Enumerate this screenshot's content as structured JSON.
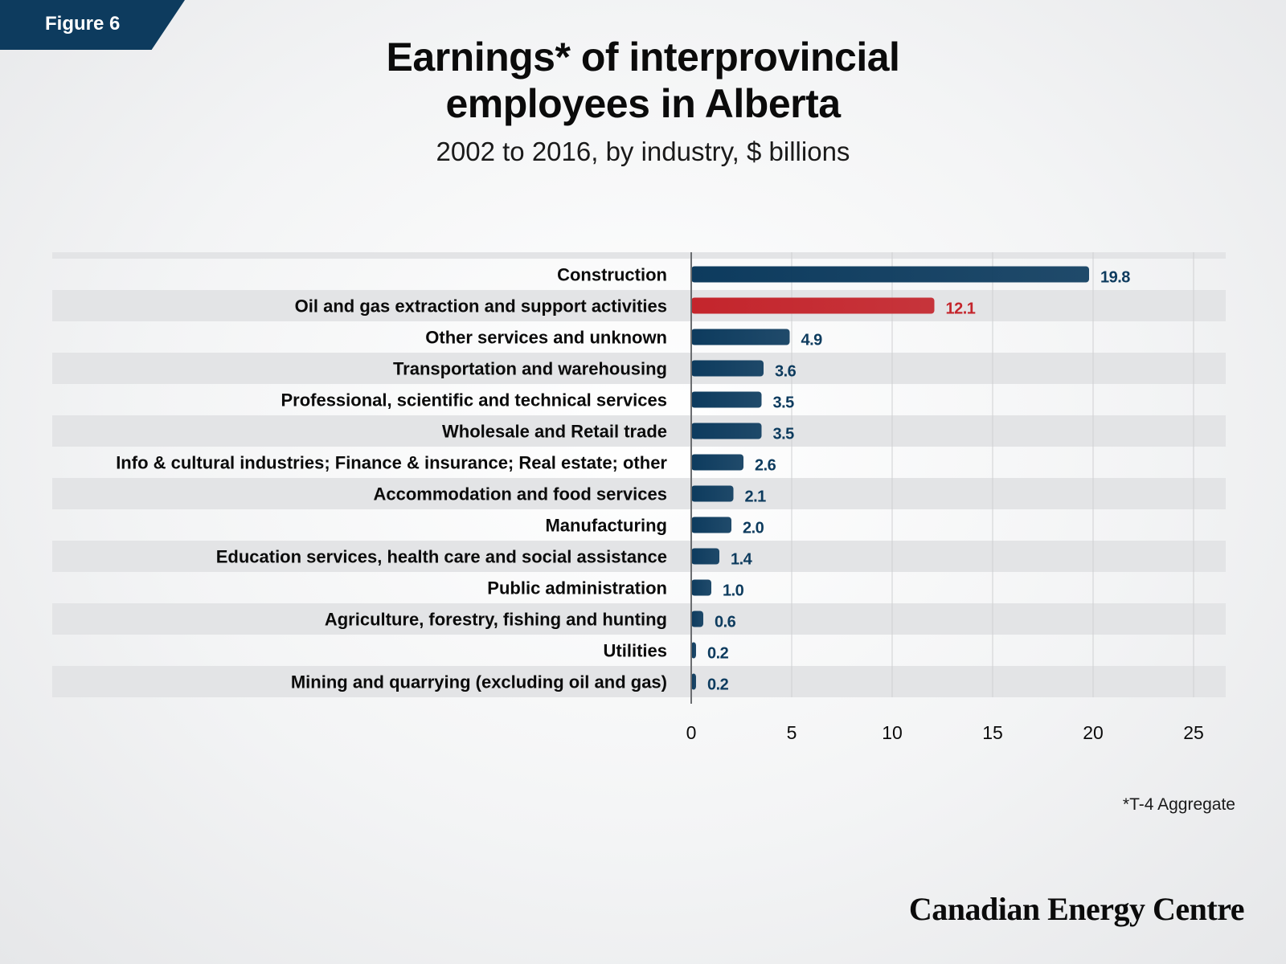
{
  "figure_label": "Figure 6",
  "title_lines": [
    "Earnings* of interprovincial",
    "employees in Alberta"
  ],
  "subtitle": "2002 to 2016, by industry, $ billions",
  "footnote": "*T-4 Aggregate",
  "brand": "Canadian Energy Centre",
  "colors": {
    "primary_bar": "#0d3b5e",
    "highlight_bar": "#c4252c",
    "stripe": "#e3e4e6",
    "figure_tag": "#0d3b5e"
  },
  "chart_data": {
    "type": "bar",
    "orientation": "horizontal",
    "title": "Earnings* of interprovincial employees in Alberta",
    "subtitle": "2002 to 2016, by industry, $ billions",
    "xlim": [
      0,
      25
    ],
    "x_ticks": [
      0,
      5,
      10,
      15,
      20,
      25
    ],
    "grid": true,
    "categories": [
      "Construction",
      "Oil and gas extraction and support activities",
      "Other services and unknown",
      "Transportation and warehousing",
      "Professional, scientific and technical services",
      "Wholesale and Retail trade",
      "Info & cultural industries; Finance & insurance; Real estate; other",
      "Accommodation and food services",
      "Manufacturing",
      "Education  services, health care and social assistance",
      "Public administration",
      "Agriculture, forestry, fishing and hunting",
      "Utilities",
      "Mining and quarrying (excluding oil and gas)"
    ],
    "values": [
      19.8,
      12.1,
      4.9,
      3.6,
      3.5,
      3.5,
      2.6,
      2.1,
      2.0,
      1.4,
      1.0,
      0.6,
      0.2,
      0.2
    ],
    "value_labels": [
      "19.8",
      "12.1",
      "4.9",
      "3.6",
      "3.5",
      "3.5",
      "2.6",
      "2.1",
      "2.0",
      "1.4",
      "1.0",
      "0.6",
      "0.2",
      "0.2"
    ],
    "highlight_category": "Oil and gas extraction and support activities"
  }
}
